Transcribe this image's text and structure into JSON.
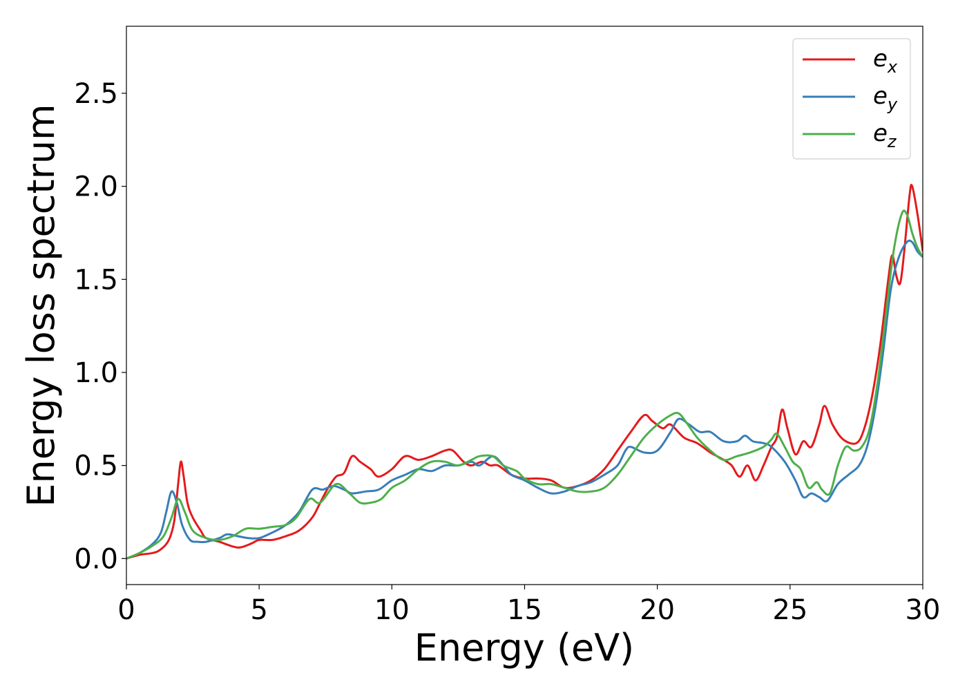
{
  "chart_data": {
    "type": "line",
    "xlabel": "Energy (eV)",
    "ylabel": "Energy loss spectrum",
    "xlim": [
      0,
      30
    ],
    "ylim": [
      -0.14,
      2.86
    ],
    "xticks": [
      0,
      5,
      10,
      15,
      20,
      25,
      30
    ],
    "xtick_labels": [
      "0",
      "5",
      "10",
      "15",
      "20",
      "25",
      "30"
    ],
    "yticks": [
      0.0,
      0.5,
      1.0,
      1.5,
      2.0,
      2.5
    ],
    "ytick_labels": [
      "0.0",
      "0.5",
      "1.0",
      "1.5",
      "2.0",
      "2.5"
    ],
    "grid": false,
    "legend_position": "top-right",
    "series": [
      {
        "name": "e",
        "subscript": "x",
        "color": "#e41a1c",
        "points": [
          [
            0,
            0
          ],
          [
            0.5,
            0.02
          ],
          [
            1,
            0.03
          ],
          [
            1.3,
            0.05
          ],
          [
            1.6,
            0.1
          ],
          [
            1.8,
            0.2
          ],
          [
            1.95,
            0.4
          ],
          [
            2.05,
            0.52
          ],
          [
            2.15,
            0.45
          ],
          [
            2.3,
            0.3
          ],
          [
            2.5,
            0.22
          ],
          [
            2.8,
            0.15
          ],
          [
            3,
            0.11
          ],
          [
            3.5,
            0.09
          ],
          [
            4,
            0.065
          ],
          [
            4.3,
            0.06
          ],
          [
            4.7,
            0.08
          ],
          [
            5,
            0.1
          ],
          [
            5.5,
            0.1
          ],
          [
            6,
            0.12
          ],
          [
            6.5,
            0.15
          ],
          [
            7,
            0.22
          ],
          [
            7.3,
            0.3
          ],
          [
            7.6,
            0.38
          ],
          [
            7.9,
            0.44
          ],
          [
            8.2,
            0.46
          ],
          [
            8.5,
            0.55
          ],
          [
            8.8,
            0.52
          ],
          [
            9.2,
            0.48
          ],
          [
            9.5,
            0.44
          ],
          [
            10,
            0.48
          ],
          [
            10.5,
            0.55
          ],
          [
            11,
            0.53
          ],
          [
            11.5,
            0.55
          ],
          [
            12,
            0.58
          ],
          [
            12.3,
            0.58
          ],
          [
            12.7,
            0.52
          ],
          [
            13,
            0.5
          ],
          [
            13.4,
            0.52
          ],
          [
            13.7,
            0.5
          ],
          [
            14,
            0.5
          ],
          [
            14.5,
            0.45
          ],
          [
            15,
            0.43
          ],
          [
            15.5,
            0.43
          ],
          [
            16,
            0.42
          ],
          [
            16.5,
            0.38
          ],
          [
            17,
            0.39
          ],
          [
            17.5,
            0.42
          ],
          [
            18,
            0.48
          ],
          [
            18.5,
            0.58
          ],
          [
            19,
            0.68
          ],
          [
            19.5,
            0.77
          ],
          [
            19.8,
            0.74
          ],
          [
            20.2,
            0.7
          ],
          [
            20.5,
            0.72
          ],
          [
            21,
            0.65
          ],
          [
            21.5,
            0.62
          ],
          [
            22,
            0.57
          ],
          [
            22.5,
            0.53
          ],
          [
            22.8,
            0.5
          ],
          [
            23.1,
            0.44
          ],
          [
            23.4,
            0.5
          ],
          [
            23.7,
            0.42
          ],
          [
            24,
            0.5
          ],
          [
            24.3,
            0.6
          ],
          [
            24.5,
            0.65
          ],
          [
            24.7,
            0.8
          ],
          [
            24.9,
            0.7
          ],
          [
            25.2,
            0.56
          ],
          [
            25.5,
            0.63
          ],
          [
            25.8,
            0.6
          ],
          [
            26.1,
            0.72
          ],
          [
            26.3,
            0.82
          ],
          [
            26.6,
            0.72
          ],
          [
            27,
            0.64
          ],
          [
            27.5,
            0.62
          ],
          [
            27.8,
            0.7
          ],
          [
            28.1,
            0.88
          ],
          [
            28.4,
            1.15
          ],
          [
            28.7,
            1.5
          ],
          [
            28.85,
            1.63
          ],
          [
            29.0,
            1.52
          ],
          [
            29.15,
            1.48
          ],
          [
            29.3,
            1.65
          ],
          [
            29.5,
            1.95
          ],
          [
            29.6,
            2.0
          ],
          [
            29.8,
            1.85
          ],
          [
            30,
            1.65
          ]
        ]
      },
      {
        "name": "e",
        "subscript": "y",
        "color": "#377eb8",
        "points": [
          [
            0,
            0
          ],
          [
            0.5,
            0.03
          ],
          [
            1,
            0.08
          ],
          [
            1.3,
            0.14
          ],
          [
            1.5,
            0.25
          ],
          [
            1.7,
            0.36
          ],
          [
            1.9,
            0.3
          ],
          [
            2.1,
            0.18
          ],
          [
            2.4,
            0.1
          ],
          [
            2.7,
            0.09
          ],
          [
            3,
            0.09
          ],
          [
            3.5,
            0.11
          ],
          [
            3.8,
            0.13
          ],
          [
            4.2,
            0.12
          ],
          [
            4.6,
            0.11
          ],
          [
            5,
            0.11
          ],
          [
            5.5,
            0.14
          ],
          [
            6,
            0.18
          ],
          [
            6.5,
            0.25
          ],
          [
            7,
            0.37
          ],
          [
            7.4,
            0.37
          ],
          [
            7.8,
            0.39
          ],
          [
            8.2,
            0.37
          ],
          [
            8.5,
            0.35
          ],
          [
            9,
            0.36
          ],
          [
            9.5,
            0.37
          ],
          [
            10,
            0.42
          ],
          [
            10.5,
            0.45
          ],
          [
            11,
            0.48
          ],
          [
            11.5,
            0.47
          ],
          [
            12,
            0.5
          ],
          [
            12.5,
            0.5
          ],
          [
            13,
            0.52
          ],
          [
            13.3,
            0.5
          ],
          [
            13.8,
            0.55
          ],
          [
            14.2,
            0.5
          ],
          [
            14.5,
            0.45
          ],
          [
            15,
            0.42
          ],
          [
            15.5,
            0.38
          ],
          [
            16,
            0.35
          ],
          [
            16.5,
            0.36
          ],
          [
            17,
            0.39
          ],
          [
            17.5,
            0.41
          ],
          [
            18,
            0.45
          ],
          [
            18.5,
            0.5
          ],
          [
            18.8,
            0.58
          ],
          [
            19,
            0.6
          ],
          [
            19.5,
            0.57
          ],
          [
            20,
            0.58
          ],
          [
            20.5,
            0.68
          ],
          [
            20.8,
            0.75
          ],
          [
            21.2,
            0.72
          ],
          [
            21.6,
            0.68
          ],
          [
            22,
            0.68
          ],
          [
            22.5,
            0.63
          ],
          [
            23,
            0.63
          ],
          [
            23.3,
            0.66
          ],
          [
            23.6,
            0.63
          ],
          [
            24,
            0.62
          ],
          [
            24.3,
            0.6
          ],
          [
            24.8,
            0.52
          ],
          [
            25.2,
            0.42
          ],
          [
            25.5,
            0.33
          ],
          [
            25.8,
            0.35
          ],
          [
            26.1,
            0.33
          ],
          [
            26.4,
            0.31
          ],
          [
            26.8,
            0.4
          ],
          [
            27.2,
            0.45
          ],
          [
            27.6,
            0.5
          ],
          [
            27.9,
            0.6
          ],
          [
            28.2,
            0.8
          ],
          [
            28.5,
            1.1
          ],
          [
            28.8,
            1.45
          ],
          [
            29.1,
            1.62
          ],
          [
            29.4,
            1.7
          ],
          [
            29.6,
            1.7
          ],
          [
            29.8,
            1.65
          ],
          [
            30,
            1.62
          ]
        ]
      },
      {
        "name": "e",
        "subscript": "z",
        "color": "#4daf4a",
        "points": [
          [
            0,
            0
          ],
          [
            0.5,
            0.03
          ],
          [
            1,
            0.07
          ],
          [
            1.4,
            0.12
          ],
          [
            1.7,
            0.22
          ],
          [
            1.95,
            0.32
          ],
          [
            2.2,
            0.25
          ],
          [
            2.5,
            0.15
          ],
          [
            3,
            0.11
          ],
          [
            3.5,
            0.1
          ],
          [
            4,
            0.12
          ],
          [
            4.5,
            0.16
          ],
          [
            5,
            0.16
          ],
          [
            5.5,
            0.17
          ],
          [
            6,
            0.18
          ],
          [
            6.4,
            0.22
          ],
          [
            6.9,
            0.32
          ],
          [
            7.3,
            0.3
          ],
          [
            7.9,
            0.4
          ],
          [
            8.4,
            0.35
          ],
          [
            8.8,
            0.3
          ],
          [
            9.2,
            0.3
          ],
          [
            9.6,
            0.32
          ],
          [
            10,
            0.38
          ],
          [
            10.5,
            0.42
          ],
          [
            11,
            0.48
          ],
          [
            11.5,
            0.52
          ],
          [
            12,
            0.52
          ],
          [
            12.5,
            0.5
          ],
          [
            13,
            0.53
          ],
          [
            13.3,
            0.55
          ],
          [
            13.8,
            0.55
          ],
          [
            14.2,
            0.5
          ],
          [
            14.7,
            0.47
          ],
          [
            15,
            0.43
          ],
          [
            15.5,
            0.4
          ],
          [
            16,
            0.4
          ],
          [
            16.5,
            0.38
          ],
          [
            17,
            0.36
          ],
          [
            17.5,
            0.36
          ],
          [
            18,
            0.38
          ],
          [
            18.5,
            0.45
          ],
          [
            19,
            0.55
          ],
          [
            19.5,
            0.65
          ],
          [
            20,
            0.72
          ],
          [
            20.5,
            0.77
          ],
          [
            20.8,
            0.78
          ],
          [
            21.1,
            0.73
          ],
          [
            21.5,
            0.65
          ],
          [
            22,
            0.58
          ],
          [
            22.5,
            0.53
          ],
          [
            23,
            0.55
          ],
          [
            23.5,
            0.57
          ],
          [
            24,
            0.6
          ],
          [
            24.3,
            0.64
          ],
          [
            24.5,
            0.67
          ],
          [
            24.8,
            0.6
          ],
          [
            25.1,
            0.52
          ],
          [
            25.4,
            0.48
          ],
          [
            25.7,
            0.38
          ],
          [
            26,
            0.41
          ],
          [
            26.2,
            0.37
          ],
          [
            26.5,
            0.35
          ],
          [
            26.8,
            0.5
          ],
          [
            27.1,
            0.6
          ],
          [
            27.4,
            0.58
          ],
          [
            27.7,
            0.6
          ],
          [
            28,
            0.7
          ],
          [
            28.3,
            0.95
          ],
          [
            28.6,
            1.3
          ],
          [
            28.9,
            1.65
          ],
          [
            29.2,
            1.85
          ],
          [
            29.4,
            1.85
          ],
          [
            29.6,
            1.75
          ],
          [
            29.8,
            1.67
          ],
          [
            30,
            1.62
          ]
        ]
      }
    ]
  }
}
